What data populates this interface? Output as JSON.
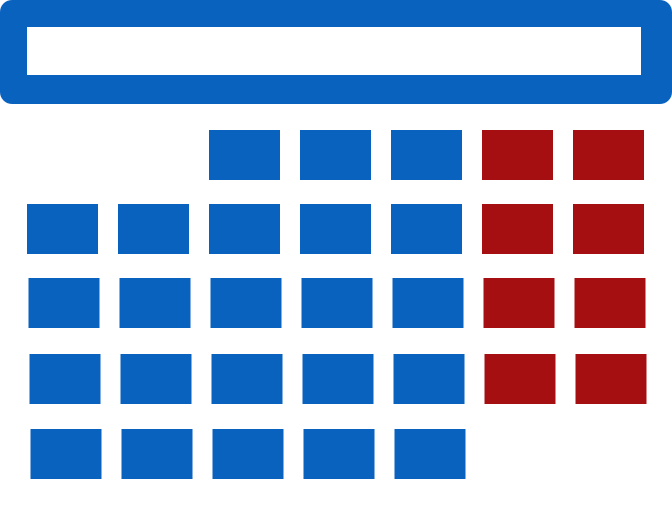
{
  "icon": "calendar-icon",
  "colors": {
    "header": "#0a62bf",
    "header_inner": "#ffffff",
    "weekday": "#0a62bf",
    "weekend": "#a50f12"
  },
  "calendar": {
    "columns": 7,
    "weekend_columns": [
      5,
      6
    ],
    "rows": [
      [
        false,
        false,
        true,
        true,
        true,
        true,
        true
      ],
      [
        true,
        true,
        true,
        true,
        true,
        true,
        true
      ],
      [
        true,
        true,
        true,
        true,
        true,
        true,
        true
      ],
      [
        true,
        true,
        true,
        true,
        true,
        true,
        true
      ],
      [
        true,
        true,
        true,
        true,
        true,
        false,
        false
      ]
    ]
  }
}
